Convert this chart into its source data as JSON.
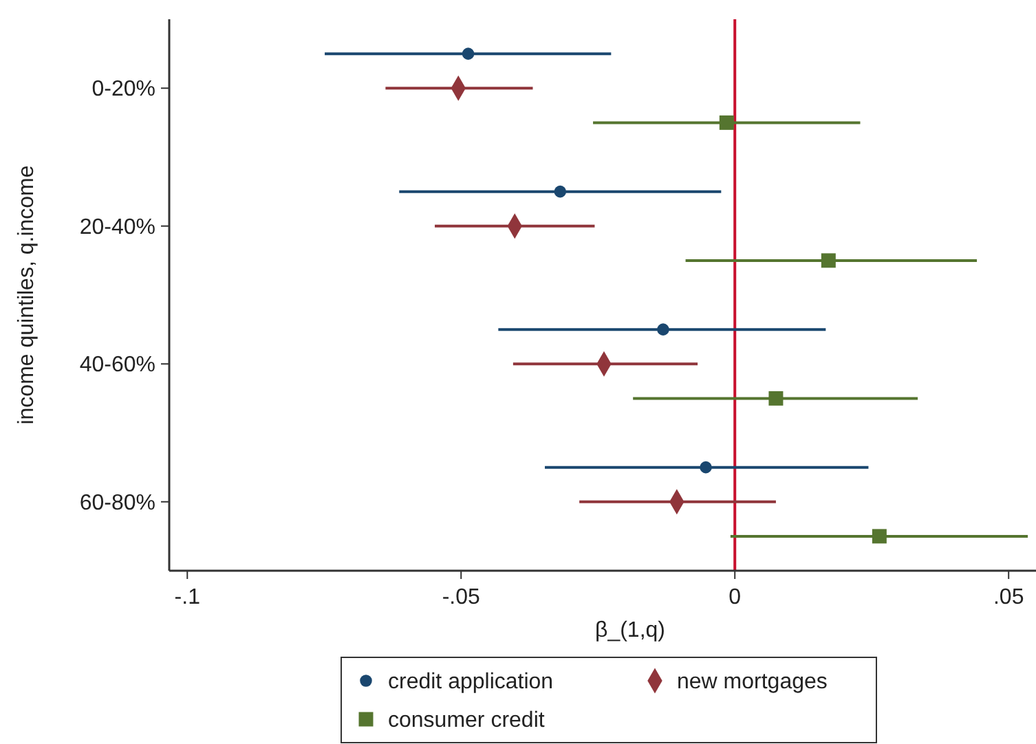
{
  "chart_data": {
    "type": "scatter",
    "orientation": "horizontal",
    "xlabel": "β_(1,q)",
    "ylabel": "income quintiles, q.income",
    "categories": [
      "0-20%",
      "20-40%",
      "40-60%",
      "60-80%"
    ],
    "xlim": [
      -0.1033,
      0.055
    ],
    "xticks": [
      {
        "value": -0.1,
        "label": "-.1"
      },
      {
        "value": -0.05,
        "label": "-.05"
      },
      0,
      {
        "value": 0.05,
        "label": ".05"
      }
    ],
    "legend": "bottom",
    "grid": false,
    "ref_lines": [
      {
        "axis": "x",
        "value": 0,
        "color": "#c8102e"
      }
    ],
    "series": [
      {
        "name": "credit application",
        "color": "#1a476f",
        "marker": "circle",
        "values": [
          -0.0487,
          -0.0319,
          -0.0131,
          -0.0053
        ],
        "errors": [
          [
            -0.0749,
            -0.0226
          ],
          [
            -0.0613,
            -0.0025
          ],
          [
            -0.0432,
            0.0166
          ],
          [
            -0.0347,
            0.0244
          ]
        ]
      },
      {
        "name": "new mortgages",
        "color": "#90353b",
        "marker": "diamond",
        "values": [
          -0.0505,
          -0.0402,
          -0.0239,
          -0.0106
        ],
        "errors": [
          [
            -0.0638,
            -0.0369
          ],
          [
            -0.0548,
            -0.0256
          ],
          [
            -0.0405,
            -0.0068
          ],
          [
            -0.0284,
            0.0075
          ]
        ]
      },
      {
        "name": "consumer credit",
        "color": "#55752f",
        "marker": "square",
        "values": [
          -0.0015,
          0.0171,
          0.0075,
          0.0264
        ],
        "errors": [
          [
            -0.0259,
            0.0229
          ],
          [
            -0.009,
            0.0442
          ],
          [
            -0.0186,
            0.0334
          ],
          [
            -0.0008,
            0.0535
          ]
        ]
      }
    ]
  }
}
